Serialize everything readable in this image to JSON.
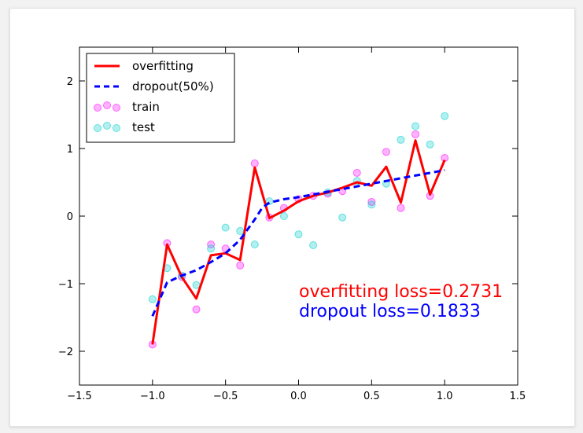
{
  "chart_data": {
    "type": "line",
    "xlim": [
      -1.5,
      1.5
    ],
    "ylim": [
      -2.5,
      2.5
    ],
    "xticks": [
      "−1.5",
      "−1.0",
      "−0.5",
      "0.0",
      "0.5",
      "1.0",
      "1.5"
    ],
    "yticks": [
      "−2",
      "−1",
      "0",
      "1",
      "2"
    ],
    "xtick_values": [
      -1.5,
      -1.0,
      -0.5,
      0.0,
      0.5,
      1.0,
      1.5
    ],
    "ytick_values": [
      -2,
      -1,
      0,
      1,
      2
    ],
    "grid": false,
    "legend_position": "top-left",
    "series": [
      {
        "name": "overfitting",
        "kind": "line",
        "style": "solid",
        "color": "#ff0000",
        "x": [
          -1.0,
          -0.9,
          -0.8,
          -0.7,
          -0.6,
          -0.5,
          -0.4,
          -0.3,
          -0.2,
          -0.1,
          0.0,
          0.1,
          0.2,
          0.3,
          0.4,
          0.5,
          0.6,
          0.7,
          0.8,
          0.9,
          1.0
        ],
        "y": [
          -1.9,
          -0.42,
          -0.9,
          -1.22,
          -0.58,
          -0.55,
          -0.65,
          0.72,
          -0.03,
          0.08,
          0.22,
          0.3,
          0.35,
          0.42,
          0.5,
          0.45,
          0.73,
          0.2,
          1.12,
          0.32,
          0.83
        ]
      },
      {
        "name": "dropout(50%)",
        "kind": "line",
        "style": "dashed",
        "color": "#0000ff",
        "x": [
          -1.0,
          -0.9,
          -0.8,
          -0.7,
          -0.6,
          -0.5,
          -0.4,
          -0.3,
          -0.25,
          -0.2,
          -0.1,
          0.0,
          0.1,
          0.2,
          0.3,
          0.4,
          0.5,
          0.6,
          0.7,
          0.8,
          0.9,
          1.0
        ],
        "y": [
          -1.48,
          -0.98,
          -0.88,
          -0.8,
          -0.68,
          -0.55,
          -0.35,
          -0.05,
          0.12,
          0.2,
          0.25,
          0.28,
          0.32,
          0.36,
          0.4,
          0.44,
          0.48,
          0.52,
          0.56,
          0.6,
          0.64,
          0.68
        ]
      },
      {
        "name": "train",
        "kind": "scatter",
        "color": "#ff00ff",
        "x": [
          -1.0,
          -0.9,
          -0.8,
          -0.7,
          -0.6,
          -0.5,
          -0.4,
          -0.3,
          -0.2,
          -0.1,
          0.0,
          0.1,
          0.2,
          0.3,
          0.4,
          0.5,
          0.6,
          0.7,
          0.8,
          0.9,
          1.0
        ],
        "y": [
          -1.9,
          -0.4,
          -0.9,
          -1.38,
          -0.42,
          -0.48,
          -0.73,
          0.78,
          -0.02,
          0.12,
          0.25,
          0.3,
          0.33,
          0.37,
          0.64,
          0.21,
          0.95,
          0.12,
          1.21,
          0.3,
          0.86
        ]
      },
      {
        "name": "test",
        "kind": "scatter",
        "color": "#00cccc",
        "x": [
          -1.0,
          -0.9,
          -0.8,
          -0.7,
          -0.6,
          -0.5,
          -0.4,
          -0.3,
          -0.2,
          -0.1,
          0.0,
          0.1,
          0.2,
          0.3,
          0.4,
          0.5,
          0.6,
          0.7,
          0.8,
          0.9,
          1.0
        ],
        "y": [
          -1.23,
          -0.77,
          -0.88,
          -1.02,
          -0.48,
          -0.17,
          -0.22,
          -0.42,
          0.22,
          0.0,
          -0.27,
          -0.43,
          0.35,
          -0.02,
          0.52,
          0.17,
          0.48,
          1.13,
          1.33,
          1.06,
          1.48
        ]
      }
    ],
    "annotations": [
      {
        "text": "overfitting loss=0.2731",
        "color": "#ff0000"
      },
      {
        "text": "dropout loss=0.1833",
        "color": "#0000ff"
      }
    ]
  }
}
